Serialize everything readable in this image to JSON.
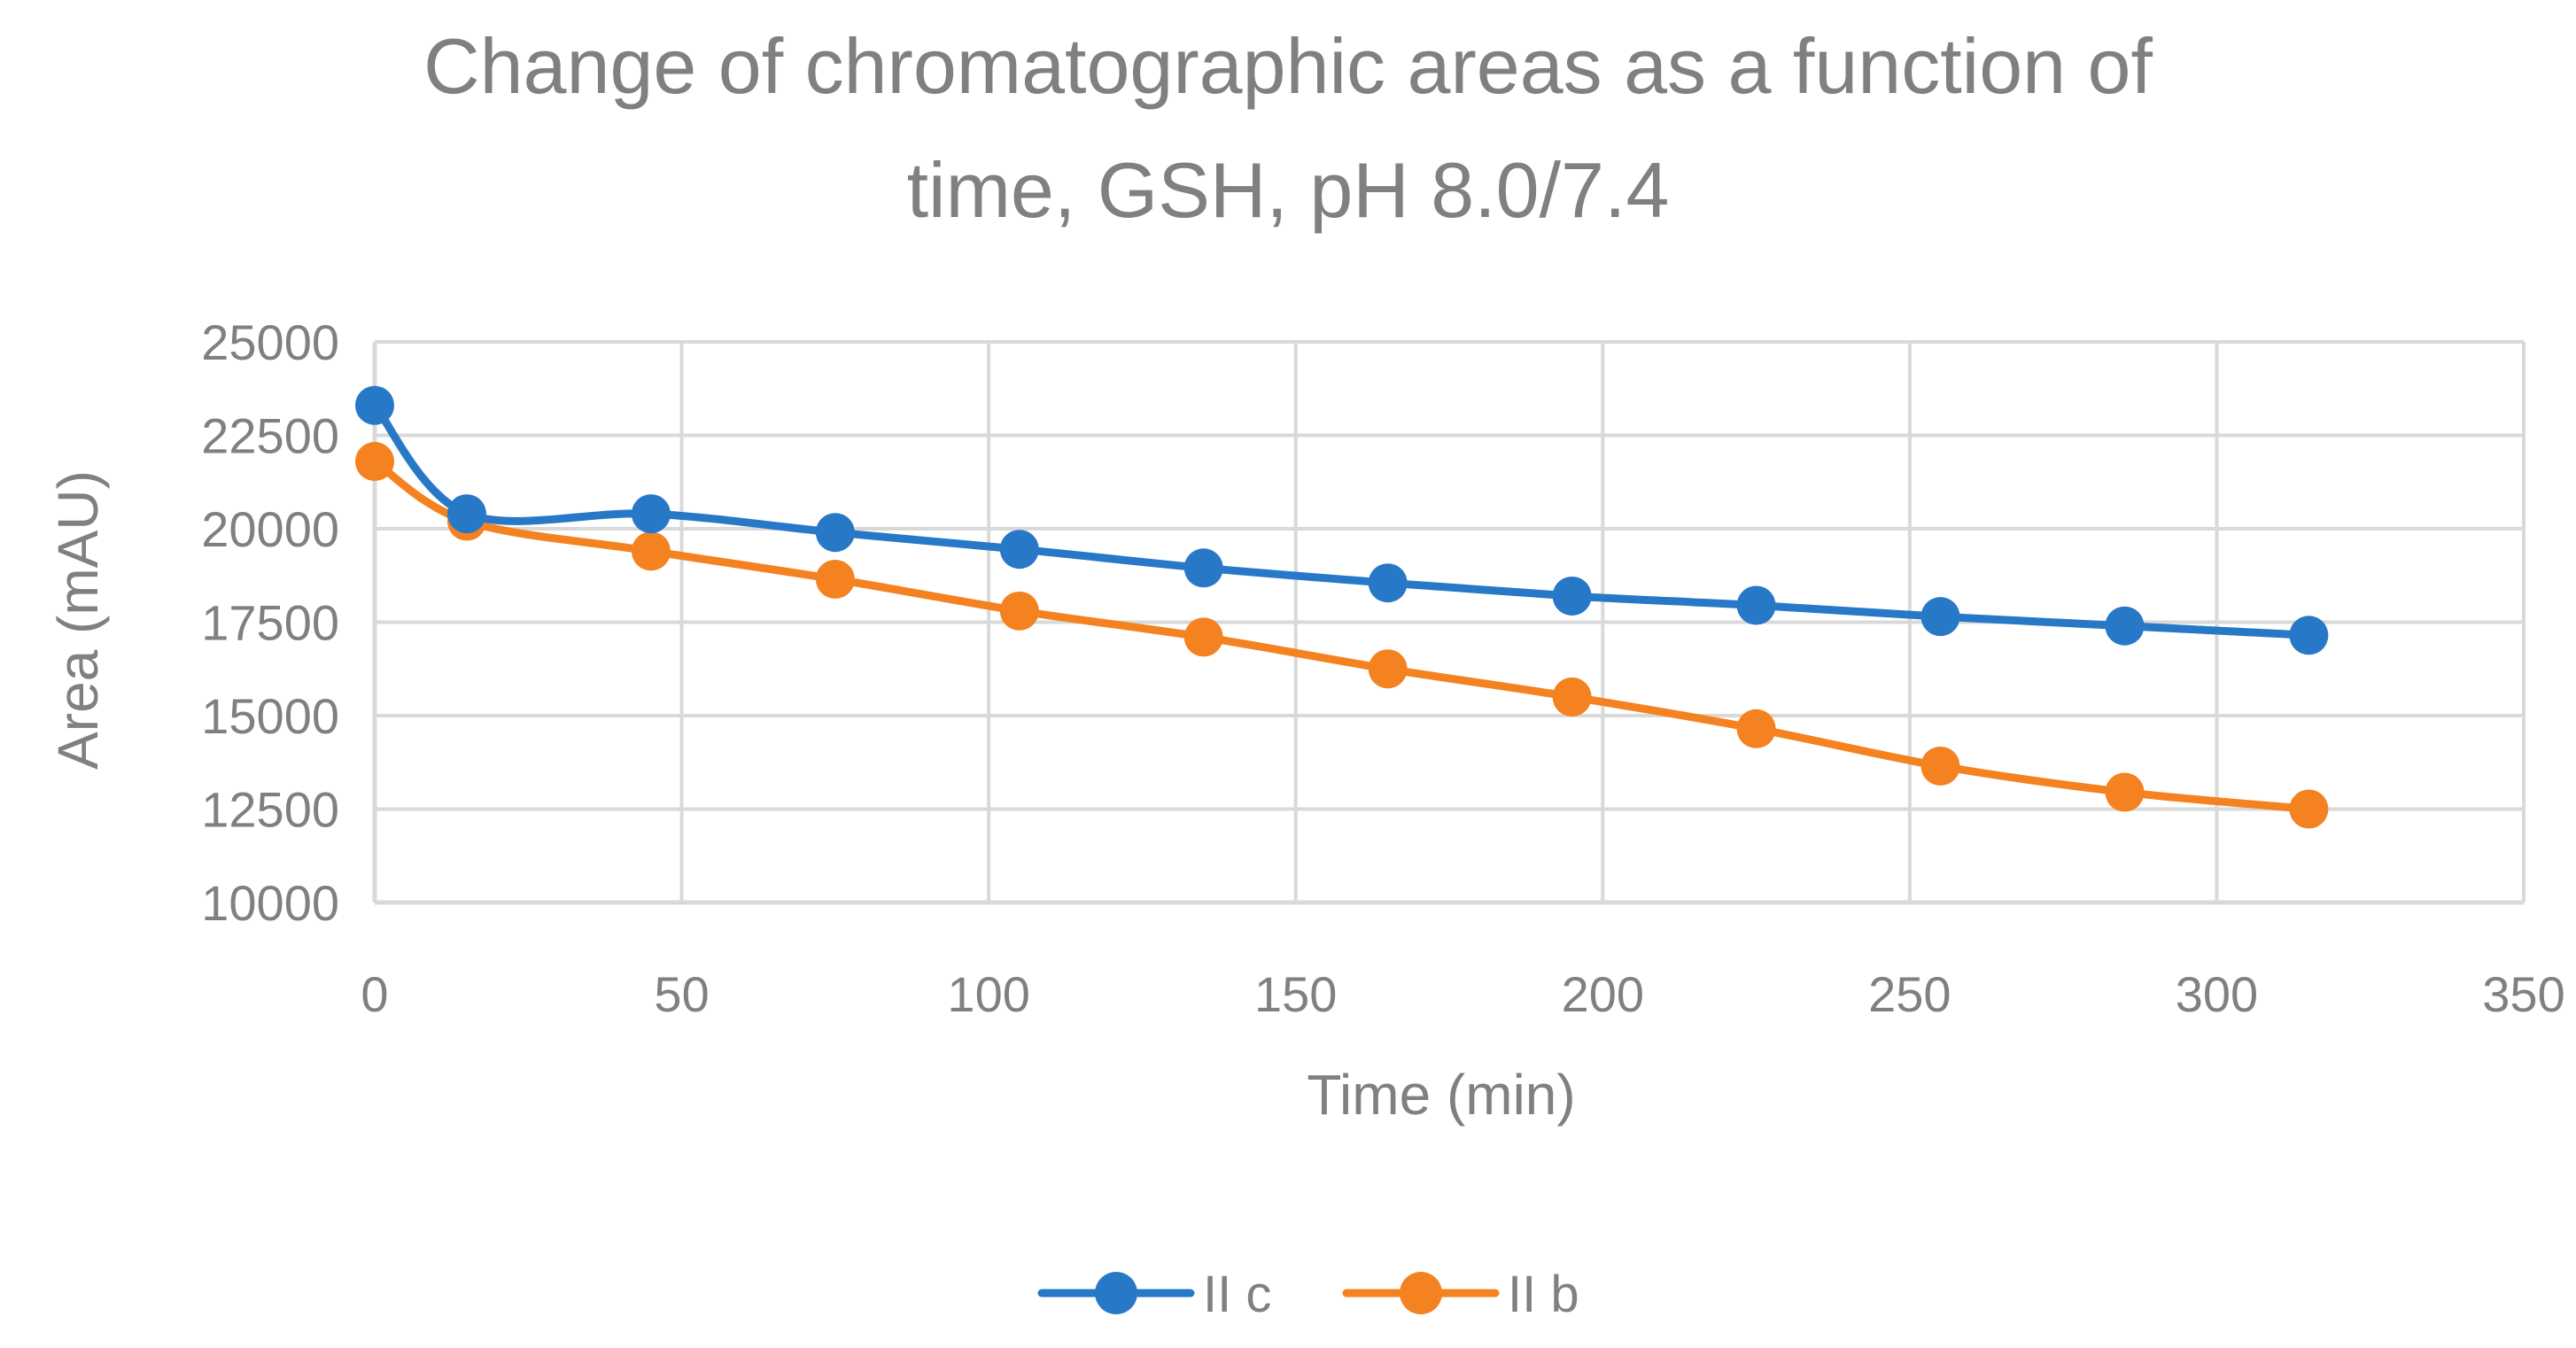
{
  "chart_data": {
    "type": "line",
    "title_lines": [
      "Change of chromatographic areas as a function of",
      "time, GSH, pH 8.0/7.4"
    ],
    "xlabel": "Time (min)",
    "ylabel": "Area (mAU)",
    "xlim": [
      0,
      350
    ],
    "ylim": [
      10000,
      25000
    ],
    "x_ticks": [
      0,
      50,
      100,
      150,
      200,
      250,
      300,
      350
    ],
    "y_ticks": [
      10000,
      12500,
      15000,
      17500,
      20000,
      22500,
      25000
    ],
    "x_tick_labels": [
      "0",
      "50",
      "100",
      "150",
      "200",
      "250",
      "300",
      "350"
    ],
    "y_tick_labels": [
      "10000",
      "12500",
      "15000",
      "17500",
      "20000",
      "22500",
      "25000"
    ],
    "grid": true,
    "legend_position": "bottom",
    "series": [
      {
        "name": "II c",
        "color": "#2878C8",
        "x": [
          0,
          15,
          45,
          75,
          105,
          135,
          165,
          195,
          225,
          255,
          285,
          315
        ],
        "values": [
          23300,
          20400,
          20400,
          19900,
          19450,
          18950,
          18550,
          18200,
          17950,
          17650,
          17400,
          17150
        ]
      },
      {
        "name": "II b",
        "color": "#F58220",
        "x": [
          0,
          15,
          45,
          75,
          105,
          135,
          165,
          195,
          225,
          255,
          285,
          315
        ],
        "values": [
          21800,
          20200,
          19400,
          18650,
          17800,
          17100,
          16250,
          15500,
          14650,
          13650,
          12950,
          12500
        ]
      }
    ]
  }
}
